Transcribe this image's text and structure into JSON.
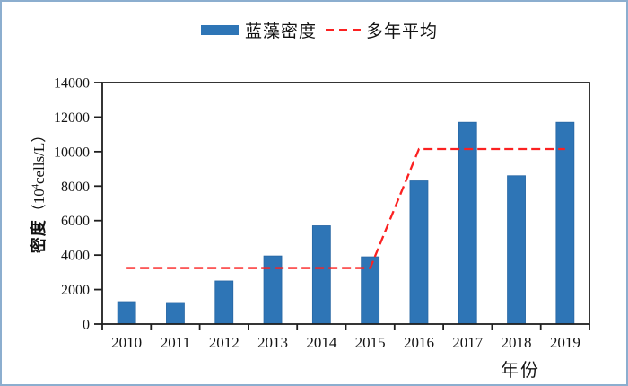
{
  "legend": {
    "bar_label": "蓝藻密度",
    "line_label": "多年平均"
  },
  "axes": {
    "y_title_main": "密度",
    "y_title_open": "（10",
    "y_title_sup": "4",
    "y_title_close": "cells/L）",
    "x_title": "年份"
  },
  "colors": {
    "bar": "#2E75B6",
    "bar_edge": "#2766A3",
    "line": "#FB2121",
    "frame": "#1f1f1f",
    "tick_text": "#141414",
    "outer_border": "#8CAECF"
  },
  "chart_data": {
    "type": "bar",
    "title": "",
    "categories": [
      "2010",
      "2011",
      "2012",
      "2013",
      "2014",
      "2015",
      "2016",
      "2017",
      "2018",
      "2019"
    ],
    "series": [
      {
        "name": "蓝藻密度",
        "type": "bar",
        "values": [
          1300,
          1250,
          2500,
          3950,
          5700,
          3900,
          8300,
          11700,
          8600,
          11700
        ]
      },
      {
        "name": "多年平均",
        "type": "line",
        "dashed": true,
        "values": [
          3250,
          3250,
          3250,
          3250,
          3250,
          3250,
          10150,
          10150,
          10150,
          10150
        ]
      }
    ],
    "xlabel": "年份",
    "ylabel": "密度（10⁴cells/L）",
    "ylim": [
      0,
      14000
    ],
    "ytick_step": 2000,
    "yticks": [
      0,
      2000,
      4000,
      6000,
      8000,
      10000,
      12000,
      14000
    ],
    "grid": false,
    "legend_position": "top-center"
  }
}
